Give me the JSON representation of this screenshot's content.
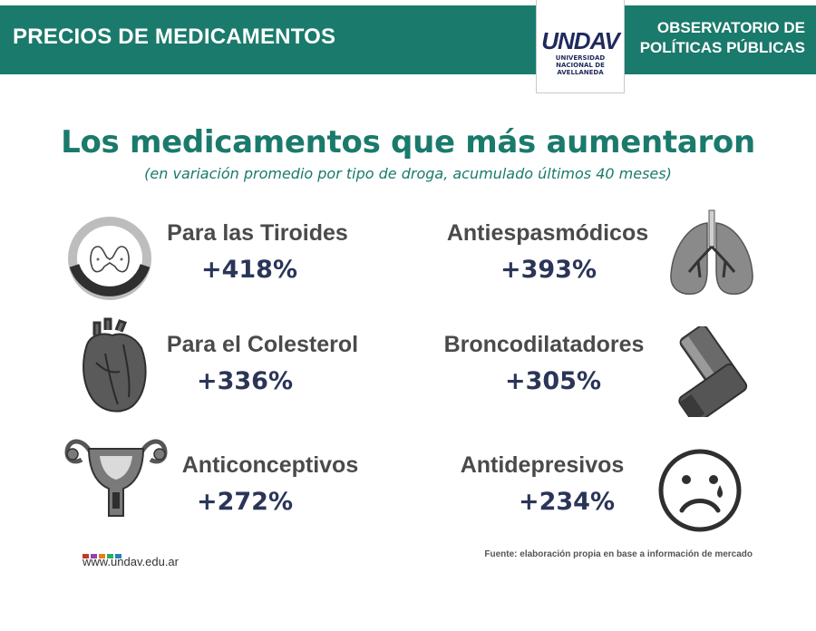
{
  "header": {
    "title": "PRECIOS DE MEDICAMENTOS",
    "org_line1": "OBSERVATORIO DE",
    "org_line2": "POLÍTICAS PÚBLICAS",
    "logo_mark": "UNDAV",
    "logo_line1": "UNIVERSIDAD",
    "logo_line2": "NACIONAL DE",
    "logo_line3": "AVELLANEDA"
  },
  "main": {
    "title": "Los medicamentos que más aumentaron",
    "subtitle": "(en variación promedio por tipo de droga, acumulado últimos 40 meses)"
  },
  "items": [
    {
      "label": "Para las Tiroides",
      "value": "+418%",
      "icon": "thyroid-icon"
    },
    {
      "label": "Antiespasmódicos",
      "value": "+393%",
      "icon": "lungs-icon"
    },
    {
      "label": "Para el Colesterol",
      "value": "+336%",
      "icon": "heart-icon"
    },
    {
      "label": "Broncodilatadores",
      "value": "+305%",
      "icon": "inhaler-icon"
    },
    {
      "label": "Anticonceptivos",
      "value": "+272%",
      "icon": "uterus-icon"
    },
    {
      "label": "Antidepresivos",
      "value": "+234%",
      "icon": "sad-face-icon"
    }
  ],
  "footer": {
    "url": "www.undav.edu.ar",
    "source": "Fuente: elaboración propia en base a información de mercado",
    "dot_colors": [
      "#c0392b",
      "#8e44ad",
      "#e67e22",
      "#27ae60",
      "#2980b9"
    ]
  },
  "colors": {
    "header_bg": "#1a7a6b",
    "title": "#1a7a6b",
    "value": "#2a3558",
    "label": "#4a4a4a"
  }
}
